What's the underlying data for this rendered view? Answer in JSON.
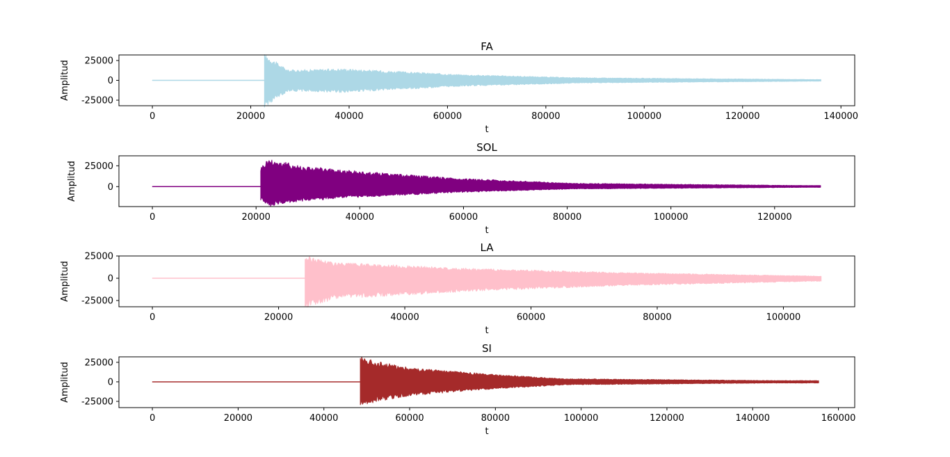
{
  "chart_data": [
    {
      "type": "line",
      "title": "FA",
      "xlabel": "t",
      "ylabel": "Amplitud",
      "color": "#add8e6",
      "xlim": [
        -6800,
        142800
      ],
      "ylim": [
        -32000,
        32000
      ],
      "xticks": [
        0,
        20000,
        40000,
        60000,
        80000,
        100000,
        120000,
        140000
      ],
      "yticks": [
        25000,
        0,
        -25000
      ],
      "xtick_labels": [
        "0",
        "20000",
        "40000",
        "60000",
        "80000",
        "100000",
        "120000",
        "140000"
      ],
      "ytick_labels": [
        "25000",
        "0",
        "-25000"
      ],
      "signal": {
        "x_start": 0,
        "onset": 22800,
        "x_end": 136000,
        "decay": 16000,
        "envelope": [
          [
            0,
            1
          ],
          [
            0.3,
            0.4
          ],
          [
            0.6,
            0.42
          ],
          [
            1,
            0.45
          ],
          [
            2.5,
            0.22
          ],
          [
            4,
            0.1
          ],
          [
            7,
            0.03
          ]
        ],
        "peak_pos": 29000,
        "peak_neg": -30000
      }
    },
    {
      "type": "line",
      "title": "SOL",
      "xlabel": "t",
      "ylabel": "Amplitud",
      "color": "#800080",
      "xlim": [
        -6450,
        135450
      ],
      "ylim": [
        -24000,
        37000
      ],
      "xticks": [
        0,
        20000,
        40000,
        60000,
        80000,
        100000,
        120000
      ],
      "yticks": [
        25000,
        0
      ],
      "xtick_labels": [
        "0",
        "20000",
        "40000",
        "60000",
        "80000",
        "100000",
        "120000"
      ],
      "ytick_labels": [
        "25000",
        "0"
      ],
      "signal": {
        "x_start": 0,
        "onset": 20900,
        "x_end": 129000,
        "decay": 15000,
        "envelope": [
          [
            0,
            0.7
          ],
          [
            0.1,
            1
          ],
          [
            0.5,
            0.75
          ],
          [
            1,
            0.6
          ],
          [
            2.5,
            0.3
          ],
          [
            4,
            0.12
          ],
          [
            7,
            0.04
          ]
        ],
        "peak_pos": 30000,
        "peak_neg": -21000
      }
    },
    {
      "type": "line",
      "title": "LA",
      "xlabel": "t",
      "ylabel": "Amplitud",
      "color": "#ffc0cb",
      "xlim": [
        -5300,
        111300
      ],
      "ylim": [
        -32000,
        25000
      ],
      "xticks": [
        0,
        20000,
        40000,
        60000,
        80000,
        100000
      ],
      "yticks": [
        25000,
        0,
        -25000
      ],
      "xtick_labels": [
        "0",
        "20000",
        "40000",
        "60000",
        "80000",
        "100000"
      ],
      "ytick_labels": [
        "25000",
        "0",
        "-25000"
      ],
      "signal": {
        "x_start": 0,
        "onset": 24200,
        "x_end": 106000,
        "decay": 17000,
        "envelope": [
          [
            0,
            1
          ],
          [
            0.3,
            0.7
          ],
          [
            0.8,
            0.6
          ],
          [
            1.5,
            0.45
          ],
          [
            3,
            0.25
          ],
          [
            4.8,
            0.1
          ]
        ],
        "peak_pos": 22000,
        "peak_neg": -29000
      }
    },
    {
      "type": "line",
      "title": "SI",
      "xlabel": "t",
      "ylabel": "Amplitud",
      "color": "#a52a2a",
      "xlim": [
        -7800,
        163800
      ],
      "ylim": [
        -33000,
        32000
      ],
      "xticks": [
        0,
        20000,
        40000,
        60000,
        80000,
        100000,
        120000,
        140000,
        160000
      ],
      "yticks": [
        25000,
        0,
        -25000
      ],
      "xtick_labels": [
        "0",
        "20000",
        "40000",
        "60000",
        "80000",
        "100000",
        "120000",
        "140000",
        "160000"
      ],
      "ytick_labels": [
        "25000",
        "0",
        "-25000"
      ],
      "signal": {
        "x_start": 0,
        "onset": 48500,
        "x_end": 155500,
        "decay": 12000,
        "envelope": [
          [
            0,
            1
          ],
          [
            0.3,
            0.8
          ],
          [
            1,
            0.55
          ],
          [
            2.5,
            0.3
          ],
          [
            4,
            0.12
          ],
          [
            8,
            0.05
          ]
        ],
        "peak_pos": 29000,
        "peak_neg": -28000
      }
    }
  ]
}
